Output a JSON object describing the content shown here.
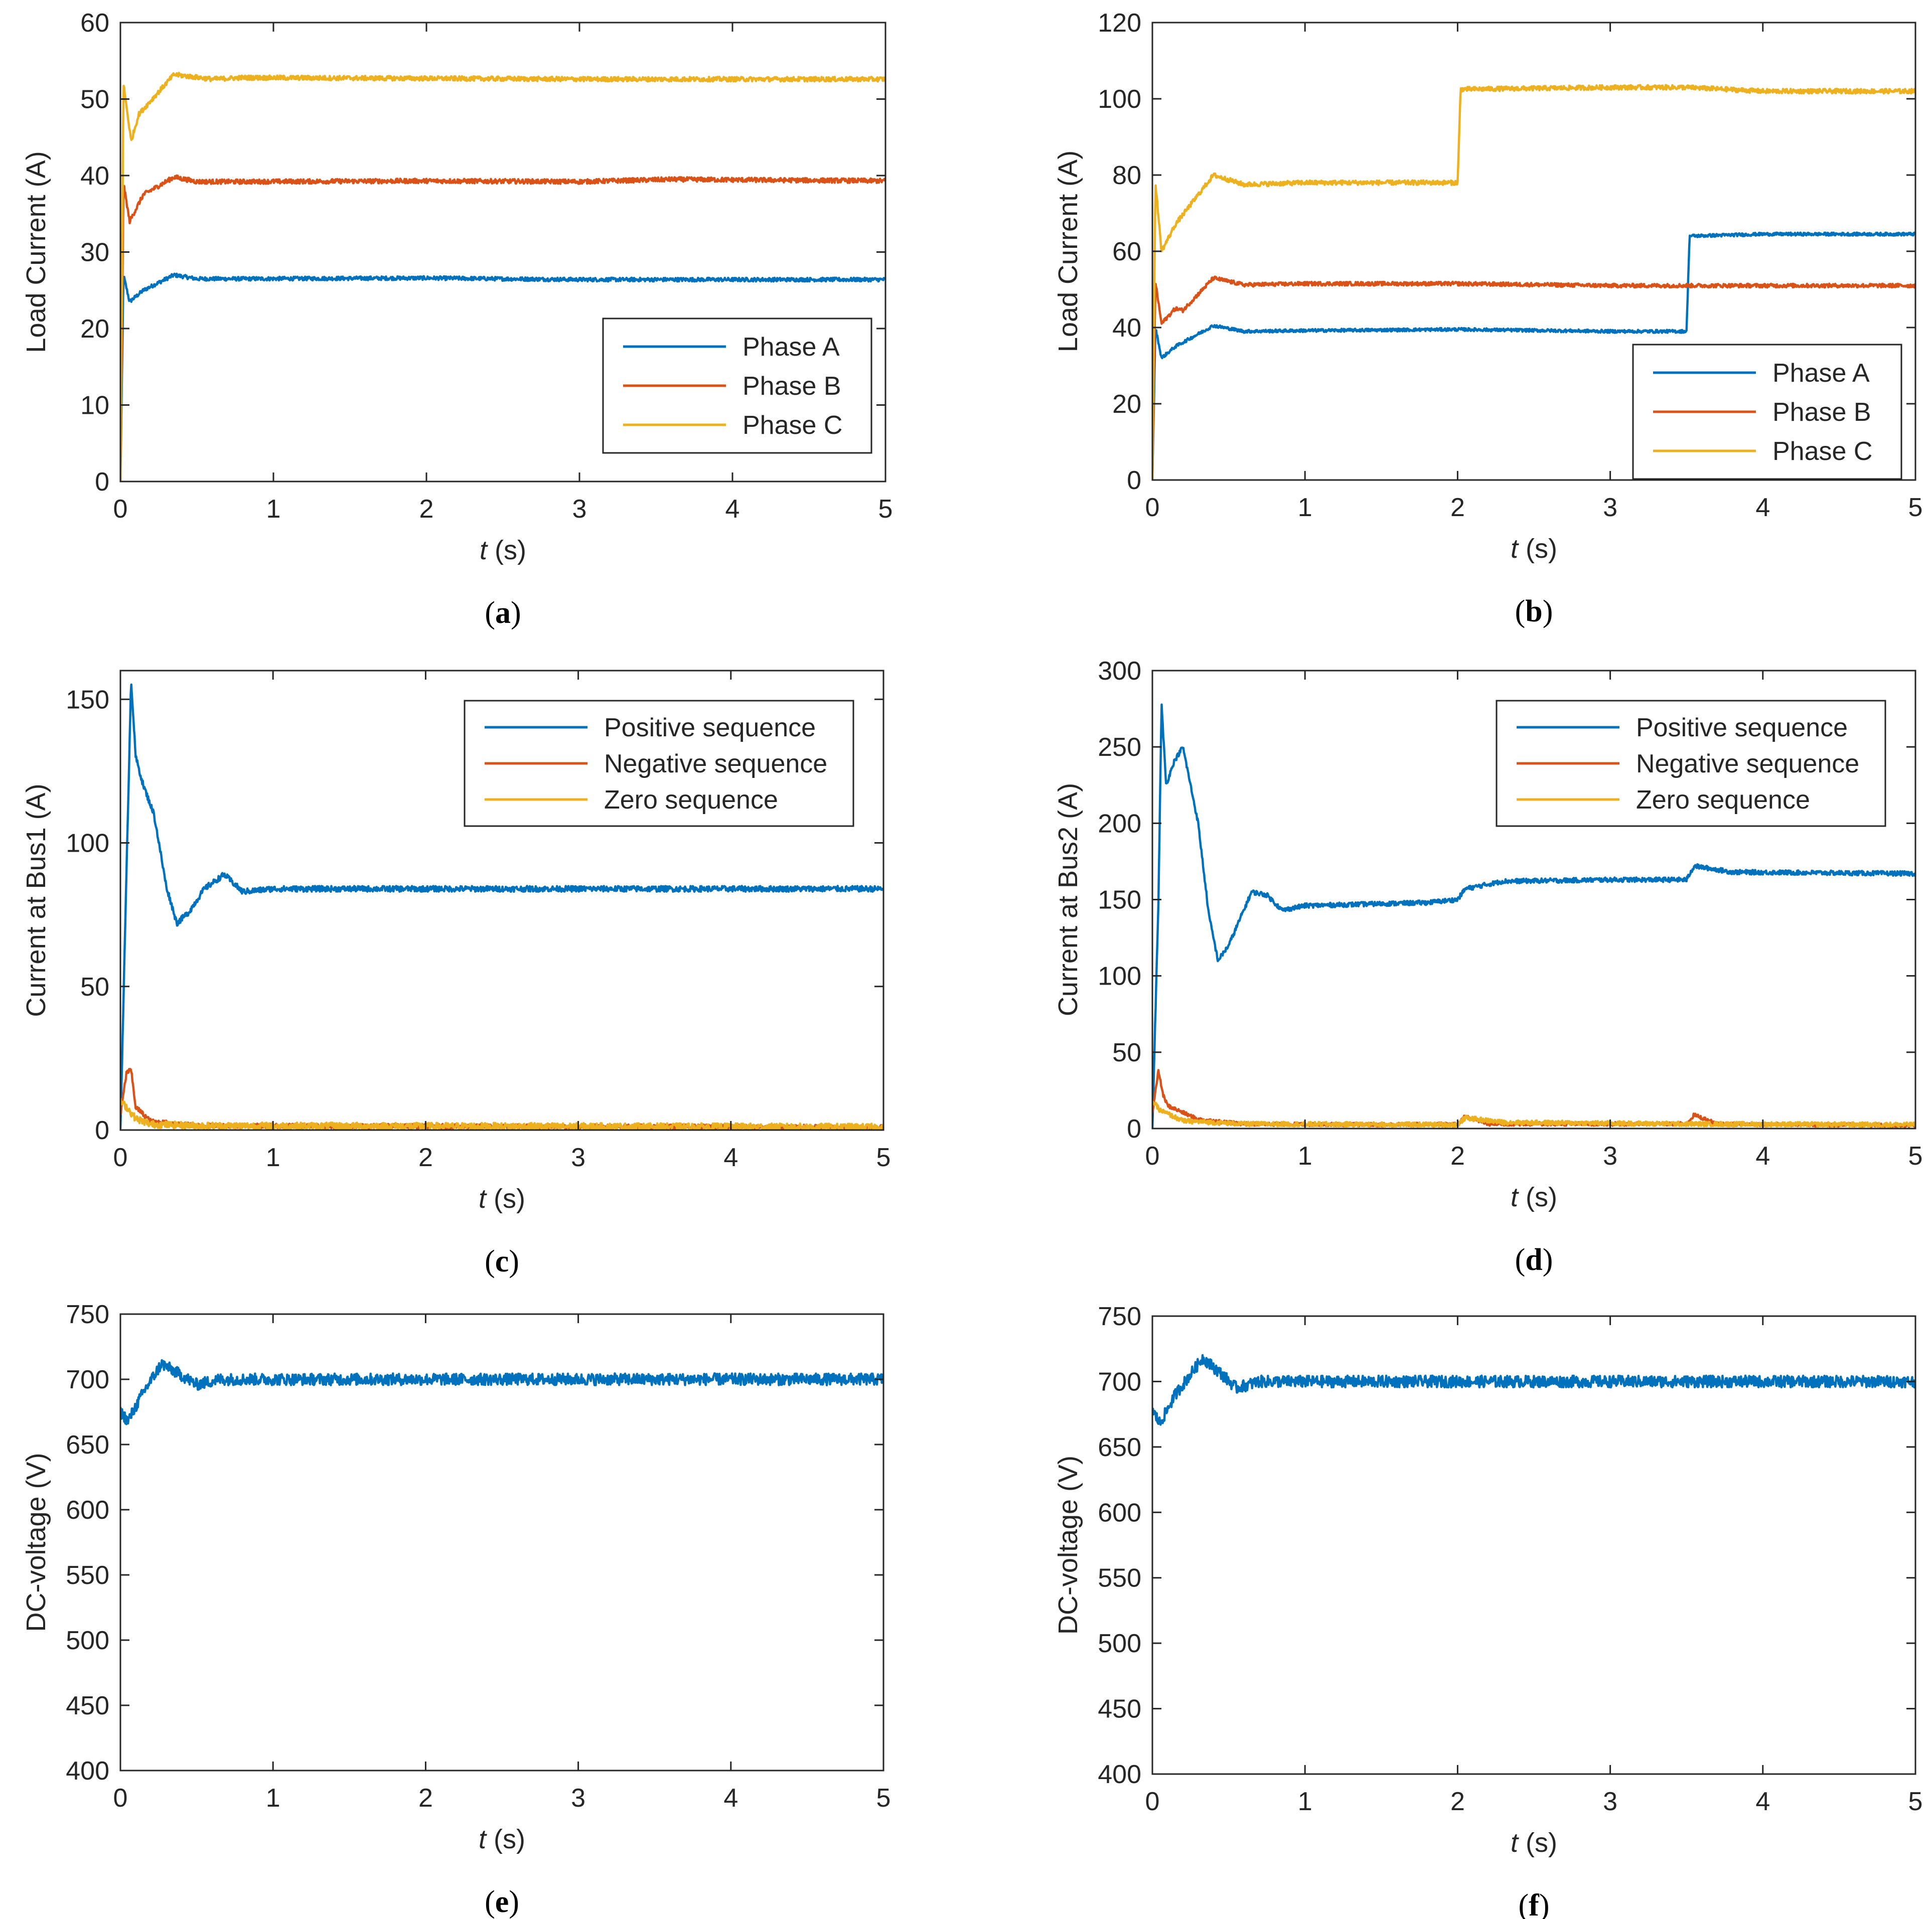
{
  "colors": {
    "blue": "#0072BD",
    "orange": "#D95319",
    "yellow": "#EDB120",
    "axis": "#262626",
    "legend_border": "#262626",
    "background": "#FFFFFF"
  },
  "chart_data": [
    {
      "id": "a",
      "type": "line",
      "caption": "a",
      "xlabel_italic": "t",
      "xlabel_unit": " (s)",
      "ylabel": "Load Current (A)",
      "xlim": [
        0,
        5
      ],
      "ylim": [
        0,
        60
      ],
      "xticks": [
        0,
        1,
        2,
        3,
        4,
        5
      ],
      "yticks": [
        0,
        10,
        20,
        30,
        40,
        50,
        60
      ],
      "legend_position": "bottom-right",
      "series": [
        {
          "name": "Phase A",
          "color": "#0072BD",
          "noise": 0.25,
          "points": [
            [
              0,
              0
            ],
            [
              0.02,
              27
            ],
            [
              0.06,
              23.5
            ],
            [
              0.15,
              25
            ],
            [
              0.35,
              27
            ],
            [
              0.5,
              26.5
            ],
            [
              0.8,
              26.5
            ],
            [
              2,
              26.6
            ],
            [
              3,
              26.4
            ],
            [
              5,
              26.4
            ]
          ]
        },
        {
          "name": "Phase B",
          "color": "#D95319",
          "noise": 0.3,
          "points": [
            [
              0,
              0
            ],
            [
              0.02,
              39
            ],
            [
              0.06,
              34
            ],
            [
              0.15,
              37.5
            ],
            [
              0.35,
              39.8
            ],
            [
              0.5,
              39.2
            ],
            [
              0.8,
              39.2
            ],
            [
              2,
              39.3
            ],
            [
              3,
              39.2
            ],
            [
              3.6,
              39.5
            ],
            [
              5,
              39.3
            ]
          ]
        },
        {
          "name": "Phase C",
          "color": "#EDB120",
          "noise": 0.3,
          "points": [
            [
              0,
              0
            ],
            [
              0.02,
              52
            ],
            [
              0.07,
              44.5
            ],
            [
              0.12,
              48
            ],
            [
              0.35,
              53.2
            ],
            [
              0.6,
              52.6
            ],
            [
              0.8,
              52.8
            ],
            [
              2,
              52.7
            ],
            [
              3,
              52.6
            ],
            [
              5,
              52.6
            ]
          ]
        }
      ]
    },
    {
      "id": "b",
      "type": "line",
      "caption": "b",
      "xlabel_italic": "t",
      "xlabel_unit": " (s)",
      "ylabel": "Load Current (A)",
      "xlim": [
        0,
        5
      ],
      "ylim": [
        0,
        120
      ],
      "xticks": [
        0,
        1,
        2,
        3,
        4,
        5
      ],
      "yticks": [
        0,
        20,
        40,
        60,
        80,
        100,
        120
      ],
      "legend_position": "bottom-right",
      "series": [
        {
          "name": "Phase A",
          "color": "#0072BD",
          "noise": 0.4,
          "points": [
            [
              0,
              0
            ],
            [
              0.02,
              40
            ],
            [
              0.06,
              32
            ],
            [
              0.15,
              35
            ],
            [
              0.4,
              40.5
            ],
            [
              0.6,
              39
            ],
            [
              1,
              39.2
            ],
            [
              2,
              39.5
            ],
            [
              3,
              39
            ],
            [
              3.5,
              39
            ],
            [
              3.52,
              64
            ],
            [
              4,
              64.5
            ],
            [
              5,
              64.5
            ]
          ]
        },
        {
          "name": "Phase B",
          "color": "#D95319",
          "noise": 0.5,
          "points": [
            [
              0,
              0
            ],
            [
              0.02,
              52
            ],
            [
              0.06,
              41
            ],
            [
              0.15,
              45
            ],
            [
              0.2,
              44.5
            ],
            [
              0.4,
              53
            ],
            [
              0.6,
              51.2
            ],
            [
              1,
              51.5
            ],
            [
              2,
              51.5
            ],
            [
              3,
              51
            ],
            [
              5,
              51
            ]
          ]
        },
        {
          "name": "Phase C",
          "color": "#EDB120",
          "noise": 0.6,
          "points": [
            [
              0,
              0
            ],
            [
              0.02,
              78
            ],
            [
              0.06,
              60
            ],
            [
              0.15,
              67
            ],
            [
              0.4,
              80
            ],
            [
              0.6,
              77.5
            ],
            [
              1,
              78
            ],
            [
              2,
              78
            ],
            [
              2.02,
              102.5
            ],
            [
              3,
              103
            ],
            [
              3.5,
              103
            ],
            [
              4,
              102
            ],
            [
              5,
              102
            ]
          ]
        }
      ]
    },
    {
      "id": "c",
      "type": "line",
      "caption": "c",
      "xlabel_italic": "t",
      "xlabel_unit": " (s)",
      "ylabel": "Current at Bus1 (A)",
      "xlim": [
        0,
        5
      ],
      "ylim": [
        0,
        160
      ],
      "xticks": [
        0,
        1,
        2,
        3,
        4,
        5
      ],
      "yticks": [
        0,
        50,
        100,
        150
      ],
      "legend_position": "top-right",
      "series": [
        {
          "name": "Positive sequence",
          "color": "#0072BD",
          "noise": 1.0,
          "points": [
            [
              0,
              0
            ],
            [
              0.04,
              90
            ],
            [
              0.07,
              157
            ],
            [
              0.1,
              130
            ],
            [
              0.15,
              120
            ],
            [
              0.22,
              110
            ],
            [
              0.3,
              85
            ],
            [
              0.37,
              72
            ],
            [
              0.45,
              76
            ],
            [
              0.55,
              84
            ],
            [
              0.68,
              89
            ],
            [
              0.8,
              83
            ],
            [
              1,
              84
            ],
            [
              2,
              84
            ],
            [
              3,
              84
            ],
            [
              4,
              84
            ],
            [
              5,
              84
            ]
          ]
        },
        {
          "name": "Negative sequence",
          "color": "#D95319",
          "noise": 0.8,
          "points": [
            [
              0,
              5
            ],
            [
              0.04,
              20
            ],
            [
              0.07,
              21
            ],
            [
              0.1,
              8
            ],
            [
              0.2,
              3
            ],
            [
              0.5,
              1.5
            ],
            [
              5,
              1
            ]
          ]
        },
        {
          "name": "Zero sequence",
          "color": "#EDB120",
          "noise": 1.2,
          "points": [
            [
              0,
              10
            ],
            [
              0.04,
              8
            ],
            [
              0.1,
              4
            ],
            [
              0.2,
              2
            ],
            [
              0.5,
              1.5
            ],
            [
              5,
              1
            ]
          ]
        }
      ]
    },
    {
      "id": "d",
      "type": "line",
      "caption": "d",
      "xlabel_italic": "t",
      "xlabel_unit": " (s)",
      "ylabel": "Current at Bus2 (A)",
      "xlim": [
        0,
        5
      ],
      "ylim": [
        0,
        300
      ],
      "xticks": [
        0,
        1,
        2,
        3,
        4,
        5
      ],
      "yticks": [
        0,
        50,
        100,
        150,
        200,
        250,
        300
      ],
      "legend_position": "top-right",
      "series": [
        {
          "name": "Positive sequence",
          "color": "#0072BD",
          "noise": 1.5,
          "points": [
            [
              0,
              0
            ],
            [
              0.04,
              150
            ],
            [
              0.06,
              278
            ],
            [
              0.09,
              225
            ],
            [
              0.14,
              240
            ],
            [
              0.2,
              250
            ],
            [
              0.3,
              200
            ],
            [
              0.37,
              140
            ],
            [
              0.43,
              110
            ],
            [
              0.5,
              120
            ],
            [
              0.65,
              155
            ],
            [
              0.75,
              153
            ],
            [
              0.85,
              143
            ],
            [
              1,
              146
            ],
            [
              1.8,
              148
            ],
            [
              2,
              150
            ],
            [
              2.05,
              157
            ],
            [
              2.3,
              162
            ],
            [
              3,
              163
            ],
            [
              3.5,
              163
            ],
            [
              3.55,
              172
            ],
            [
              3.8,
              168
            ],
            [
              5,
              167
            ]
          ]
        },
        {
          "name": "Negative sequence",
          "color": "#D95319",
          "noise": 1.2,
          "points": [
            [
              0,
              10
            ],
            [
              0.04,
              38
            ],
            [
              0.07,
              22
            ],
            [
              0.1,
              15
            ],
            [
              0.3,
              6
            ],
            [
              0.6,
              3
            ],
            [
              1.5,
              2.5
            ],
            [
              2,
              3
            ],
            [
              2.05,
              8
            ],
            [
              2.2,
              3
            ],
            [
              3.5,
              3
            ],
            [
              3.55,
              9
            ],
            [
              3.7,
              3
            ],
            [
              5,
              2
            ]
          ]
        },
        {
          "name": "Zero sequence",
          "color": "#EDB120",
          "noise": 1.5,
          "points": [
            [
              0,
              18
            ],
            [
              0.05,
              12
            ],
            [
              0.2,
              5
            ],
            [
              0.6,
              3
            ],
            [
              2,
              2.5
            ],
            [
              2.05,
              7
            ],
            [
              2.3,
              4
            ],
            [
              3.5,
              3
            ],
            [
              5,
              2.5
            ]
          ]
        }
      ]
    },
    {
      "id": "e",
      "type": "line",
      "caption": "e",
      "xlabel_italic": "t",
      "xlabel_unit": " (s)",
      "ylabel": "DC-voltage (V)",
      "xlim": [
        0,
        5
      ],
      "ylim": [
        400,
        750
      ],
      "xticks": [
        0,
        1,
        2,
        3,
        4,
        5
      ],
      "yticks": [
        400,
        450,
        500,
        550,
        600,
        650,
        700,
        750
      ],
      "legend_position": "none",
      "series": [
        {
          "name": "DC-voltage",
          "color": "#0072BD",
          "noise": 4.5,
          "points": [
            [
              0,
              675
            ],
            [
              0.05,
              668
            ],
            [
              0.15,
              690
            ],
            [
              0.27,
              712
            ],
            [
              0.4,
              703
            ],
            [
              0.5,
              696
            ],
            [
              0.65,
              700
            ],
            [
              1,
              700
            ],
            [
              5,
              700
            ]
          ]
        }
      ]
    },
    {
      "id": "f",
      "type": "line",
      "caption": "f",
      "xlabel_italic": "t",
      "xlabel_unit": " (s)",
      "ylabel": "DC-voltage (V)",
      "xlim": [
        0,
        5
      ],
      "ylim": [
        400,
        750
      ],
      "xticks": [
        0,
        1,
        2,
        3,
        4,
        5
      ],
      "yticks": [
        400,
        450,
        500,
        550,
        600,
        650,
        700,
        750
      ],
      "legend_position": "none",
      "series": [
        {
          "name": "DC-voltage",
          "color": "#0072BD",
          "noise": 4.5,
          "points": [
            [
              0,
              678
            ],
            [
              0.05,
              668
            ],
            [
              0.15,
              690
            ],
            [
              0.33,
              718
            ],
            [
              0.45,
              706
            ],
            [
              0.55,
              695
            ],
            [
              0.7,
              700
            ],
            [
              1,
              700
            ],
            [
              5,
              700
            ]
          ]
        }
      ]
    }
  ]
}
